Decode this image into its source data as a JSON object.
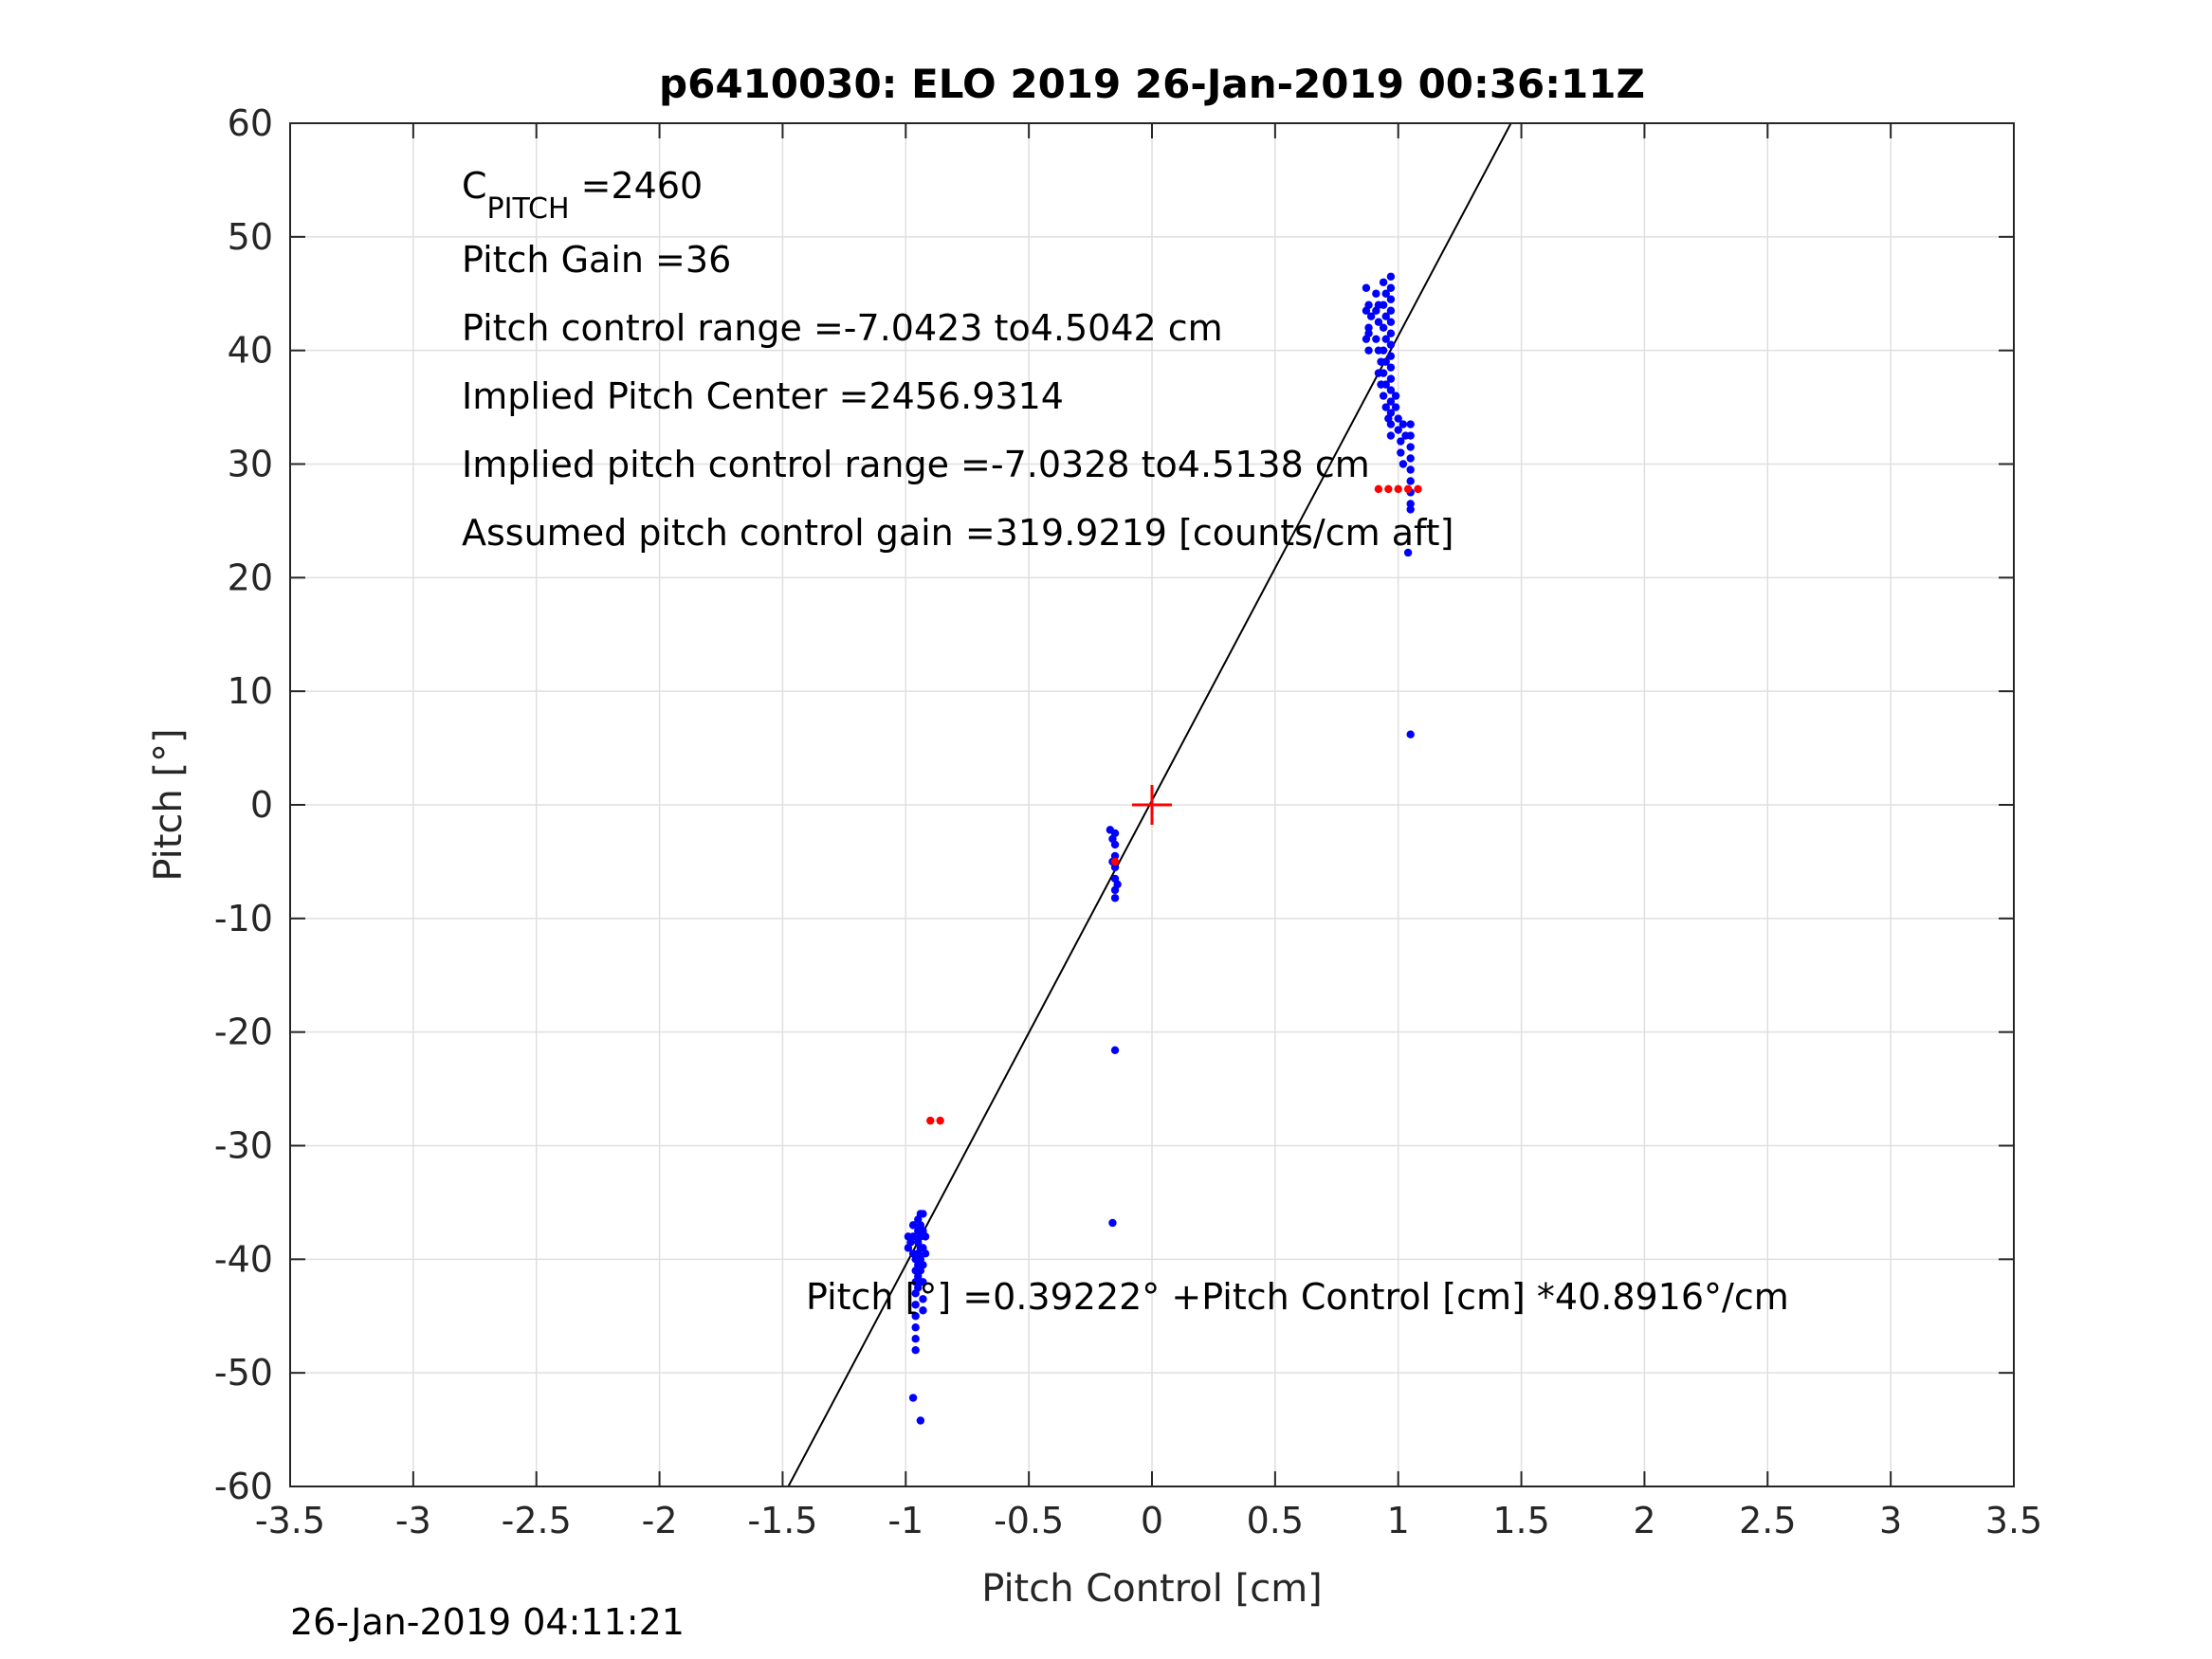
{
  "chart_data": {
    "type": "scatter",
    "title": "p6410030: ELO 2019 26-Jan-2019 00:36:11Z",
    "xlabel": "Pitch Control [cm]",
    "ylabel": "Pitch [°]",
    "xlim": [
      -3.5,
      3.5
    ],
    "ylim": [
      -60,
      60
    ],
    "xticks": [
      -3.5,
      -3,
      -2.5,
      -2,
      -1.5,
      -1,
      -0.5,
      0,
      0.5,
      1,
      1.5,
      2,
      2.5,
      3,
      3.5
    ],
    "yticks": [
      -60,
      -50,
      -40,
      -30,
      -20,
      -10,
      0,
      10,
      20,
      30,
      40,
      50,
      60
    ],
    "xtick_labels": [
      "-3.5",
      "-3",
      "-2.5",
      "-2",
      "-1.5",
      "-1",
      "-0.5",
      "0",
      "0.5",
      "1",
      "1.5",
      "2",
      "2.5",
      "3",
      "3.5"
    ],
    "ytick_labels": [
      "-60",
      "-50",
      "-40",
      "-30",
      "-20",
      "-10",
      "0",
      "10",
      "20",
      "30",
      "40",
      "50",
      "60"
    ],
    "grid": true,
    "series": [
      {
        "color": "#0000ff",
        "marker": "dot",
        "points": [
          [
            0.87,
            45.5
          ],
          [
            0.88,
            44.0
          ],
          [
            0.87,
            43.5
          ],
          [
            0.88,
            42.0
          ],
          [
            0.87,
            41.0
          ],
          [
            0.88,
            40.0
          ],
          [
            0.89,
            43.0
          ],
          [
            0.88,
            41.5
          ],
          [
            0.91,
            45.0
          ],
          [
            0.92,
            44.0
          ],
          [
            0.92,
            42.5
          ],
          [
            0.91,
            41.0
          ],
          [
            0.92,
            40.0
          ],
          [
            0.93,
            39.0
          ],
          [
            0.92,
            38.0
          ],
          [
            0.93,
            37.0
          ],
          [
            0.91,
            43.5
          ],
          [
            0.94,
            46.0
          ],
          [
            0.95,
            45.0
          ],
          [
            0.94,
            44.0
          ],
          [
            0.95,
            43.0
          ],
          [
            0.94,
            42.0
          ],
          [
            0.95,
            41.0
          ],
          [
            0.94,
            40.0
          ],
          [
            0.95,
            39.0
          ],
          [
            0.94,
            38.0
          ],
          [
            0.95,
            37.0
          ],
          [
            0.94,
            36.0
          ],
          [
            0.95,
            35.0
          ],
          [
            0.96,
            34.0
          ],
          [
            0.97,
            46.5
          ],
          [
            0.97,
            45.5
          ],
          [
            0.97,
            44.5
          ],
          [
            0.97,
            43.5
          ],
          [
            0.97,
            42.5
          ],
          [
            0.97,
            41.5
          ],
          [
            0.97,
            40.5
          ],
          [
            0.97,
            39.5
          ],
          [
            0.97,
            38.5
          ],
          [
            0.97,
            37.5
          ],
          [
            0.97,
            36.5
          ],
          [
            0.97,
            35.5
          ],
          [
            0.97,
            34.5
          ],
          [
            0.97,
            33.5
          ],
          [
            0.97,
            32.5
          ],
          [
            0.99,
            36.0
          ],
          [
            0.99,
            35.0
          ],
          [
            1.0,
            34.0
          ],
          [
            1.0,
            33.0
          ],
          [
            1.01,
            32.0
          ],
          [
            1.01,
            31.0
          ],
          [
            1.02,
            30.0
          ],
          [
            1.02,
            33.5
          ],
          [
            1.03,
            32.5
          ],
          [
            1.05,
            33.5
          ],
          [
            1.05,
            32.5
          ],
          [
            1.05,
            31.5
          ],
          [
            1.05,
            30.5
          ],
          [
            1.05,
            29.5
          ],
          [
            1.05,
            28.5
          ],
          [
            1.05,
            27.5
          ],
          [
            1.05,
            26.5
          ],
          [
            1.05,
            26.0
          ],
          [
            1.04,
            22.2
          ],
          [
            1.05,
            6.2
          ],
          [
            -0.17,
            -2.2
          ],
          [
            -0.15,
            -2.5
          ],
          [
            -0.15,
            -3.5
          ],
          [
            -0.15,
            -4.5
          ],
          [
            -0.15,
            -5.5
          ],
          [
            -0.15,
            -6.5
          ],
          [
            -0.14,
            -7.0
          ],
          [
            -0.15,
            -7.5
          ],
          [
            -0.15,
            -8.2
          ],
          [
            -0.16,
            -5.0
          ],
          [
            -0.16,
            -3.0
          ],
          [
            -0.15,
            -21.6
          ],
          [
            -0.16,
            -36.8
          ],
          [
            -0.99,
            -38.0
          ],
          [
            -0.99,
            -39.0
          ],
          [
            -0.98,
            -38.5
          ],
          [
            -0.97,
            -37.0
          ],
          [
            -0.97,
            -38.0
          ],
          [
            -0.97,
            -39.5
          ],
          [
            -0.96,
            -40.0
          ],
          [
            -0.96,
            -41.0
          ],
          [
            -0.96,
            -42.0
          ],
          [
            -0.96,
            -43.0
          ],
          [
            -0.96,
            -44.0
          ],
          [
            -0.96,
            -45.0
          ],
          [
            -0.96,
            -46.0
          ],
          [
            -0.96,
            -47.0
          ],
          [
            -0.96,
            -48.0
          ],
          [
            -0.95,
            -36.5
          ],
          [
            -0.95,
            -37.5
          ],
          [
            -0.95,
            -38.5
          ],
          [
            -0.95,
            -39.5
          ],
          [
            -0.95,
            -40.5
          ],
          [
            -0.95,
            -41.5
          ],
          [
            -0.95,
            -42.5
          ],
          [
            -0.94,
            -36.0
          ],
          [
            -0.94,
            -37.0
          ],
          [
            -0.94,
            -38.0
          ],
          [
            -0.94,
            -39.0
          ],
          [
            -0.94,
            -40.0
          ],
          [
            -0.94,
            -41.0
          ],
          [
            -0.94,
            -42.0
          ],
          [
            -0.93,
            -36.0
          ],
          [
            -0.93,
            -37.5
          ],
          [
            -0.93,
            -39.0
          ],
          [
            -0.93,
            -40.5
          ],
          [
            -0.93,
            -42.0
          ],
          [
            -0.93,
            -43.5
          ],
          [
            -0.93,
            -44.5
          ],
          [
            -0.92,
            -38.0
          ],
          [
            -0.92,
            -39.5
          ],
          [
            -0.97,
            -52.2
          ],
          [
            -0.94,
            -54.2
          ]
        ]
      },
      {
        "color": "#ff0000",
        "marker": "dot",
        "points": [
          [
            0.92,
            27.8
          ],
          [
            0.96,
            27.8
          ],
          [
            1.0,
            27.8
          ],
          [
            1.04,
            27.8
          ],
          [
            1.08,
            27.8
          ],
          [
            -0.9,
            -27.8
          ],
          [
            -0.86,
            -27.8
          ],
          [
            -0.15,
            -5.0
          ]
        ]
      }
    ],
    "fit_line": {
      "intercept": 0.39222,
      "slope": 40.8916,
      "color": "#000000"
    },
    "center_marker": {
      "x": 0,
      "y": 0,
      "color": "#ff0000"
    },
    "annotations": {
      "c_pitch_main": "C",
      "c_pitch_sub": "PITCH",
      "c_pitch_value": " =2460",
      "pitch_gain": "Pitch Gain =36",
      "control_range": "Pitch control range =-7.0423 to4.5042 cm",
      "implied_center": "Implied Pitch Center =2456.9314",
      "implied_range": "Implied pitch control range =-7.0328 to4.5138 cm",
      "assumed_gain": "Assumed pitch control gain =319.9219 [counts/cm aft]",
      "fit_equation": "Pitch [°] =0.39222° +Pitch Control [cm] *40.8916°/cm"
    },
    "timestamp": "26-Jan-2019 04:11:21"
  }
}
